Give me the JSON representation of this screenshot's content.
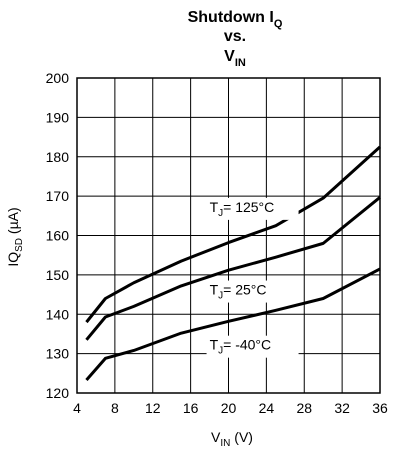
{
  "chart_data": {
    "type": "line",
    "title": {
      "line1_main": "Shutdown I",
      "line1_sub": "Q",
      "line2": "vs.",
      "line3_main": "V",
      "line3_sub": "IN"
    },
    "xlabel": {
      "main": "V",
      "sub": "IN",
      "rest": " (V)"
    },
    "ylabel": {
      "main": "IQ",
      "sub": "SD",
      "rest": " (µA)"
    },
    "xlim": [
      4,
      36
    ],
    "ylim": [
      120,
      200
    ],
    "xticks": [
      4,
      8,
      12,
      16,
      20,
      24,
      28,
      32,
      36
    ],
    "yticks": [
      120,
      130,
      140,
      150,
      160,
      170,
      180,
      190,
      200
    ],
    "grid": true,
    "series": [
      {
        "name": "T_J = 125°C",
        "label": {
          "t": "T",
          "sub": "J",
          "rest": "= 125°C"
        },
        "x": [
          5,
          7,
          10,
          15,
          20,
          25,
          30,
          36
        ],
        "y": [
          138,
          144,
          148,
          153.5,
          158.2,
          162.5,
          169.5,
          182.5
        ]
      },
      {
        "name": "T_J = 25°C",
        "label": {
          "t": "T",
          "sub": "J",
          "rest": "= 25°C"
        },
        "x": [
          5,
          7,
          10,
          15,
          20,
          25,
          30,
          36
        ],
        "y": [
          133.5,
          139.3,
          142,
          147.2,
          151.2,
          154.5,
          158,
          169.7
        ]
      },
      {
        "name": "T_J = -40°C",
        "label": {
          "t": "T",
          "sub": "J",
          "rest": "= -40°C"
        },
        "x": [
          5,
          7,
          10,
          15,
          20,
          25,
          30,
          36
        ],
        "y": [
          123.3,
          128.8,
          130.8,
          135.2,
          138.2,
          141,
          144,
          151.5
        ]
      }
    ]
  }
}
